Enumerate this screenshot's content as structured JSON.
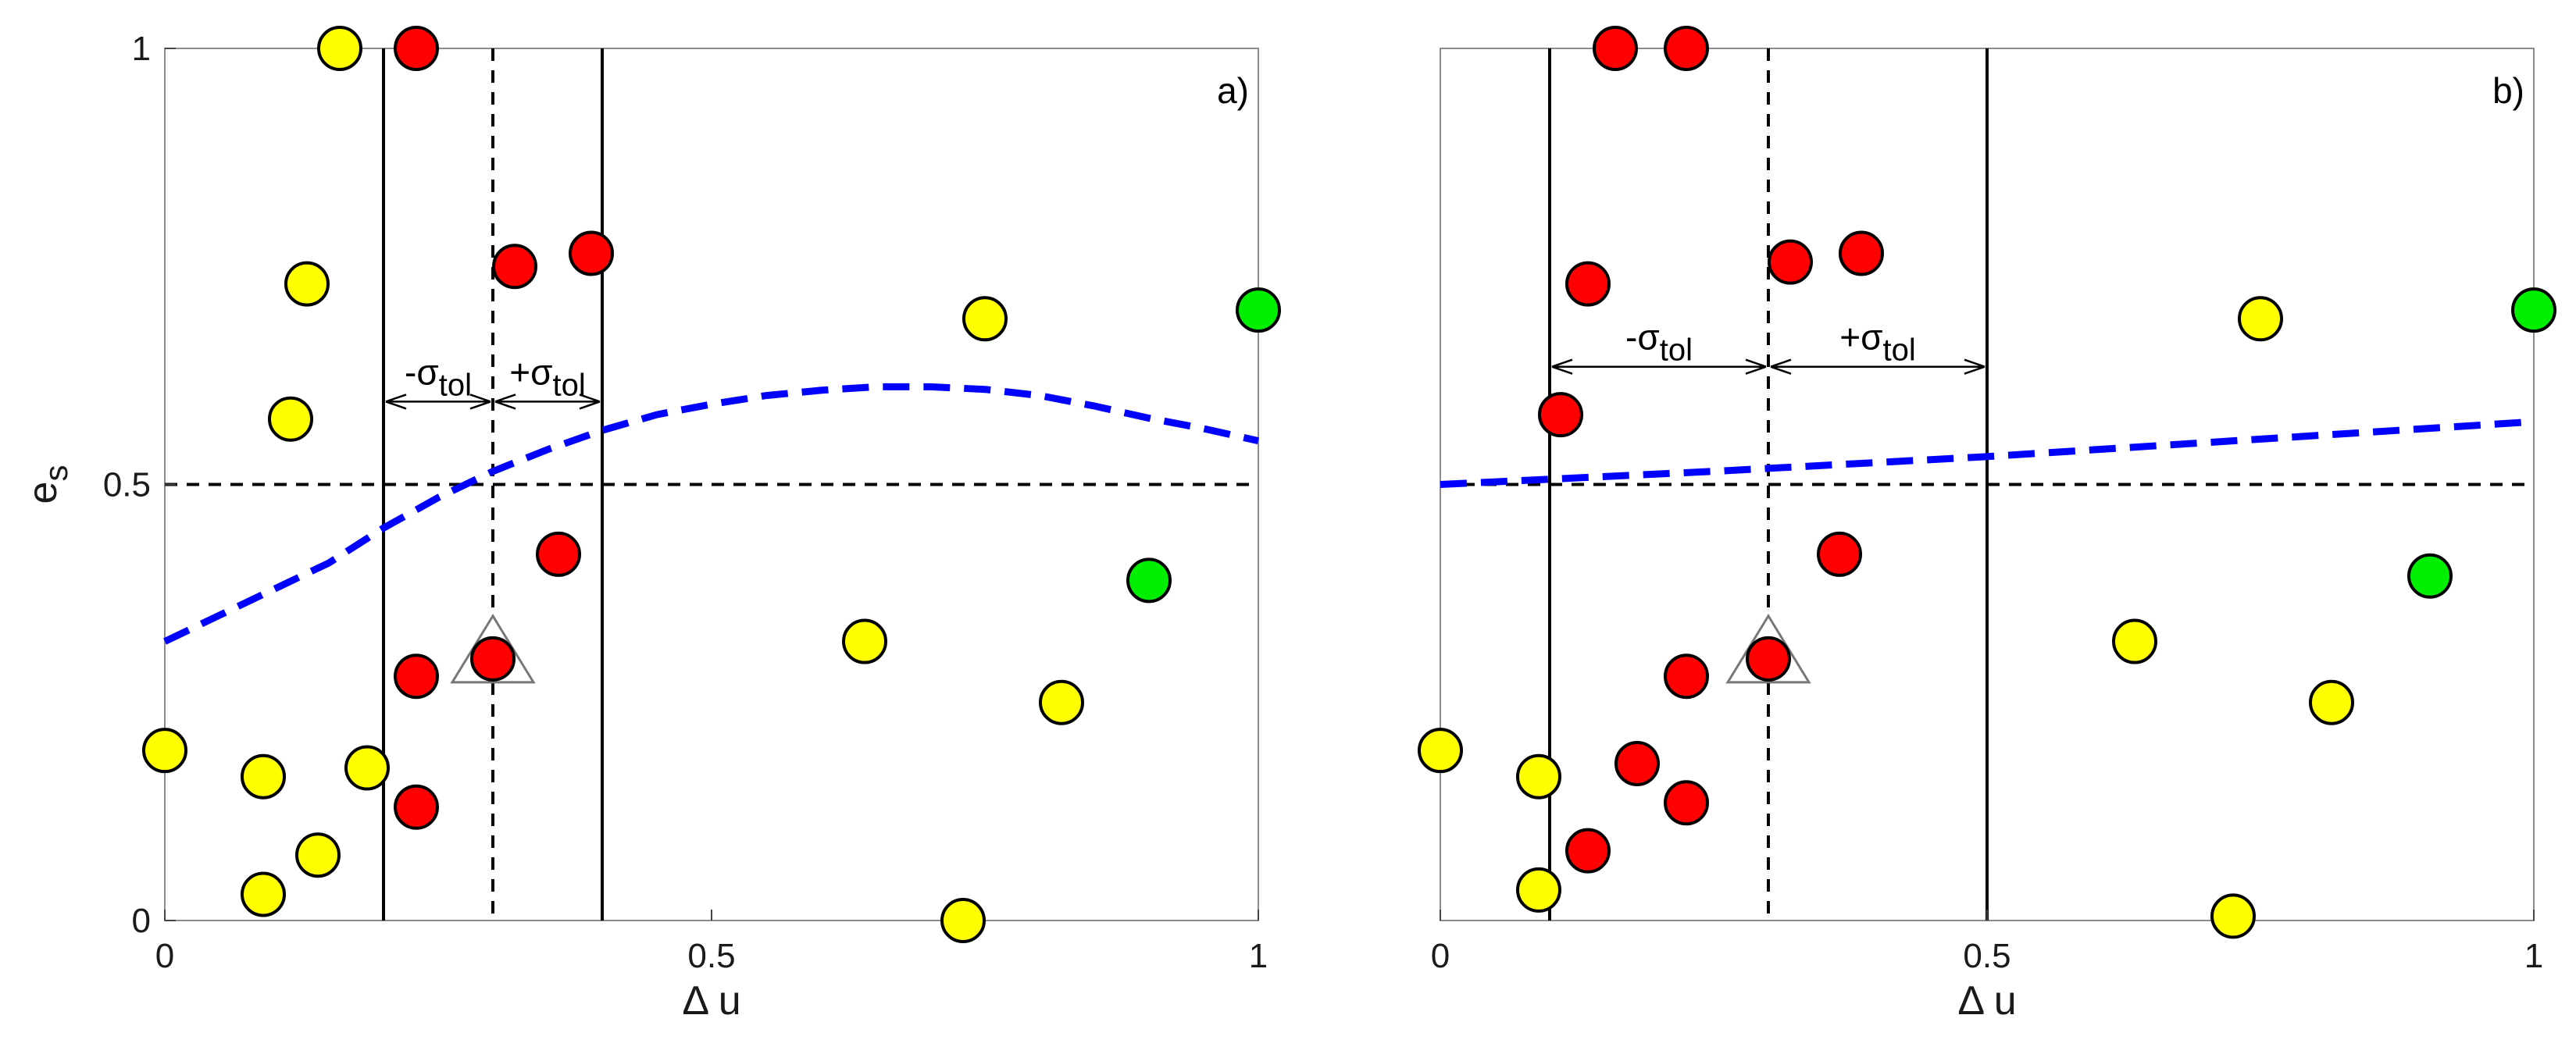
{
  "chart_data": [
    {
      "type": "scatter",
      "panel_label": "a)",
      "xlabel": "Δ u",
      "ylabel": "e",
      "ylabel_sub": "s",
      "xlim": [
        0,
        1
      ],
      "ylim": [
        0,
        1
      ],
      "xticks": [
        0,
        0.5,
        1
      ],
      "xtick_labels": [
        "0",
        "0.5",
        "1"
      ],
      "yticks": [
        0,
        0.5,
        1
      ],
      "ytick_labels": [
        "0",
        "0.5",
        "1"
      ],
      "grid": false,
      "threshold_line_y": 0.5,
      "center_x": 0.3,
      "tolerance_lines_x": [
        0.2,
        0.4
      ],
      "annotation_minus": "-σ",
      "annotation_plus": "+σ",
      "annotation_sub": "tol",
      "annotation_y": 0.595,
      "query_point": {
        "x": 0.3,
        "y": 0.3
      },
      "colors": {
        "yellow": "#ffff00",
        "red": "#ff0000",
        "green": "#00ee00",
        "curve": "#0000ff"
      },
      "curve": {
        "x": [
          0,
          0.05,
          0.1,
          0.15,
          0.2,
          0.25,
          0.3,
          0.35,
          0.4,
          0.45,
          0.5,
          0.55,
          0.6,
          0.65,
          0.7,
          0.75,
          0.8,
          0.85,
          0.9,
          0.95,
          1.0
        ],
        "y": [
          0.32,
          0.35,
          0.38,
          0.41,
          0.45,
          0.485,
          0.515,
          0.54,
          0.562,
          0.58,
          0.592,
          0.602,
          0.608,
          0.612,
          0.612,
          0.609,
          0.602,
          0.59,
          0.576,
          0.564,
          0.55
        ]
      },
      "points": [
        {
          "x": 0.16,
          "y": 1.0,
          "c": "yellow"
        },
        {
          "x": 0.23,
          "y": 1.0,
          "c": "red"
        },
        {
          "x": 0.13,
          "y": 0.73,
          "c": "yellow"
        },
        {
          "x": 0.32,
          "y": 0.75,
          "c": "red"
        },
        {
          "x": 0.39,
          "y": 0.765,
          "c": "red"
        },
        {
          "x": 0.75,
          "y": 0.69,
          "c": "yellow"
        },
        {
          "x": 1.0,
          "y": 0.7,
          "c": "green"
        },
        {
          "x": 0.115,
          "y": 0.575,
          "c": "yellow"
        },
        {
          "x": 0.36,
          "y": 0.42,
          "c": "red"
        },
        {
          "x": 0.9,
          "y": 0.39,
          "c": "green"
        },
        {
          "x": 0.64,
          "y": 0.32,
          "c": "yellow"
        },
        {
          "x": 0.23,
          "y": 0.28,
          "c": "red"
        },
        {
          "x": 0.3,
          "y": 0.3,
          "c": "red"
        },
        {
          "x": 0.82,
          "y": 0.25,
          "c": "yellow"
        },
        {
          "x": 0.0,
          "y": 0.195,
          "c": "yellow"
        },
        {
          "x": 0.09,
          "y": 0.165,
          "c": "yellow"
        },
        {
          "x": 0.185,
          "y": 0.175,
          "c": "yellow"
        },
        {
          "x": 0.23,
          "y": 0.13,
          "c": "red"
        },
        {
          "x": 0.14,
          "y": 0.075,
          "c": "yellow"
        },
        {
          "x": 0.09,
          "y": 0.03,
          "c": "yellow"
        },
        {
          "x": 0.73,
          "y": 0.0,
          "c": "yellow"
        }
      ]
    },
    {
      "type": "scatter",
      "panel_label": "b)",
      "xlabel": "Δ u",
      "ylabel": "",
      "ylabel_sub": "",
      "xlim": [
        0,
        1
      ],
      "ylim": [
        0,
        1
      ],
      "xticks": [
        0,
        0.5,
        1
      ],
      "xtick_labels": [
        "0",
        "0.5",
        "1"
      ],
      "yticks": [],
      "ytick_labels": [],
      "grid": false,
      "threshold_line_y": 0.5,
      "center_x": 0.3,
      "tolerance_lines_x": [
        0.1,
        0.5
      ],
      "annotation_minus": "-σ",
      "annotation_plus": "+σ",
      "annotation_sub": "tol",
      "annotation_y": 0.635,
      "query_point": {
        "x": 0.3,
        "y": 0.3
      },
      "colors": {
        "yellow": "#ffff00",
        "red": "#ff0000",
        "green": "#00ee00",
        "curve": "#0000ff"
      },
      "curve": {
        "x": [
          0,
          0.25,
          0.5,
          0.75,
          1.0
        ],
        "y": [
          0.5,
          0.515,
          0.532,
          0.552,
          0.572
        ]
      },
      "points": [
        {
          "x": 0.16,
          "y": 1.0,
          "c": "red"
        },
        {
          "x": 0.225,
          "y": 1.0,
          "c": "red"
        },
        {
          "x": 0.135,
          "y": 0.73,
          "c": "red"
        },
        {
          "x": 0.32,
          "y": 0.755,
          "c": "red"
        },
        {
          "x": 0.385,
          "y": 0.765,
          "c": "red"
        },
        {
          "x": 0.75,
          "y": 0.69,
          "c": "yellow"
        },
        {
          "x": 1.0,
          "y": 0.7,
          "c": "green"
        },
        {
          "x": 0.11,
          "y": 0.58,
          "c": "red"
        },
        {
          "x": 0.365,
          "y": 0.42,
          "c": "red"
        },
        {
          "x": 0.905,
          "y": 0.395,
          "c": "green"
        },
        {
          "x": 0.635,
          "y": 0.32,
          "c": "yellow"
        },
        {
          "x": 0.225,
          "y": 0.28,
          "c": "red"
        },
        {
          "x": 0.3,
          "y": 0.3,
          "c": "red"
        },
        {
          "x": 0.815,
          "y": 0.25,
          "c": "yellow"
        },
        {
          "x": 0.0,
          "y": 0.195,
          "c": "yellow"
        },
        {
          "x": 0.09,
          "y": 0.165,
          "c": "yellow"
        },
        {
          "x": 0.18,
          "y": 0.18,
          "c": "red"
        },
        {
          "x": 0.225,
          "y": 0.135,
          "c": "red"
        },
        {
          "x": 0.135,
          "y": 0.08,
          "c": "red"
        },
        {
          "x": 0.09,
          "y": 0.035,
          "c": "yellow"
        },
        {
          "x": 0.725,
          "y": 0.005,
          "c": "yellow"
        }
      ]
    }
  ]
}
